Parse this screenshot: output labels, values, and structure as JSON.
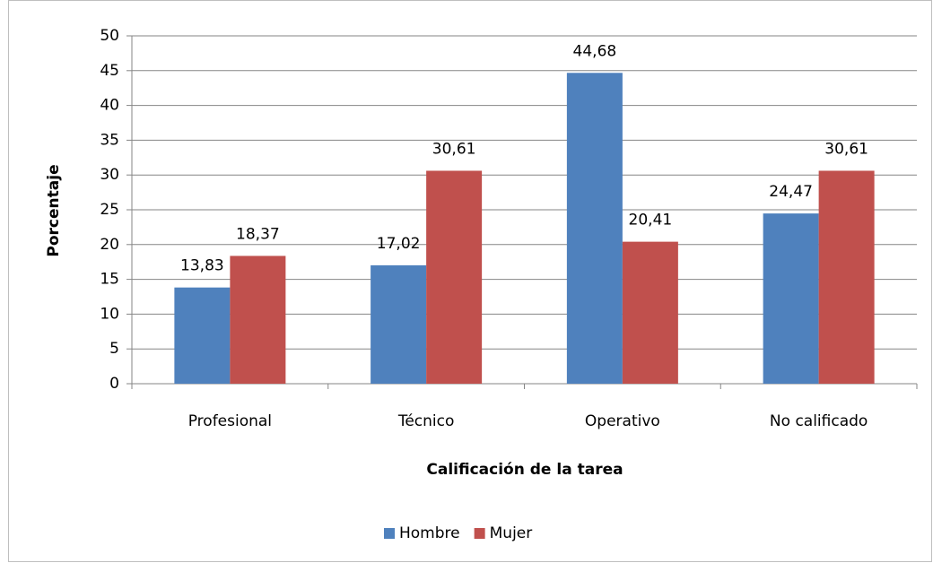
{
  "chart_data": {
    "type": "bar",
    "x_label": "Calificación de la tarea",
    "y_label": "Porcentaje",
    "categories": [
      "Profesional",
      "Técnico",
      "Operativo",
      "No calificado"
    ],
    "series": [
      {
        "name": "Hombre",
        "color": "#4f81bd",
        "values": [
          13.83,
          17.02,
          44.68,
          24.47
        ],
        "value_labels": [
          "13,83",
          "17,02",
          "44,68",
          "24,47"
        ]
      },
      {
        "name": "Mujer",
        "color": "#c0504d",
        "values": [
          18.37,
          30.61,
          20.41,
          30.61
        ],
        "value_labels": [
          "18,37",
          "30,61",
          "20,41",
          "30,61"
        ]
      }
    ],
    "ylim": [
      0,
      50
    ],
    "yticks": [
      0,
      5,
      10,
      15,
      20,
      25,
      30,
      35,
      40,
      45,
      50
    ],
    "grid": true,
    "legend": "bottom"
  }
}
